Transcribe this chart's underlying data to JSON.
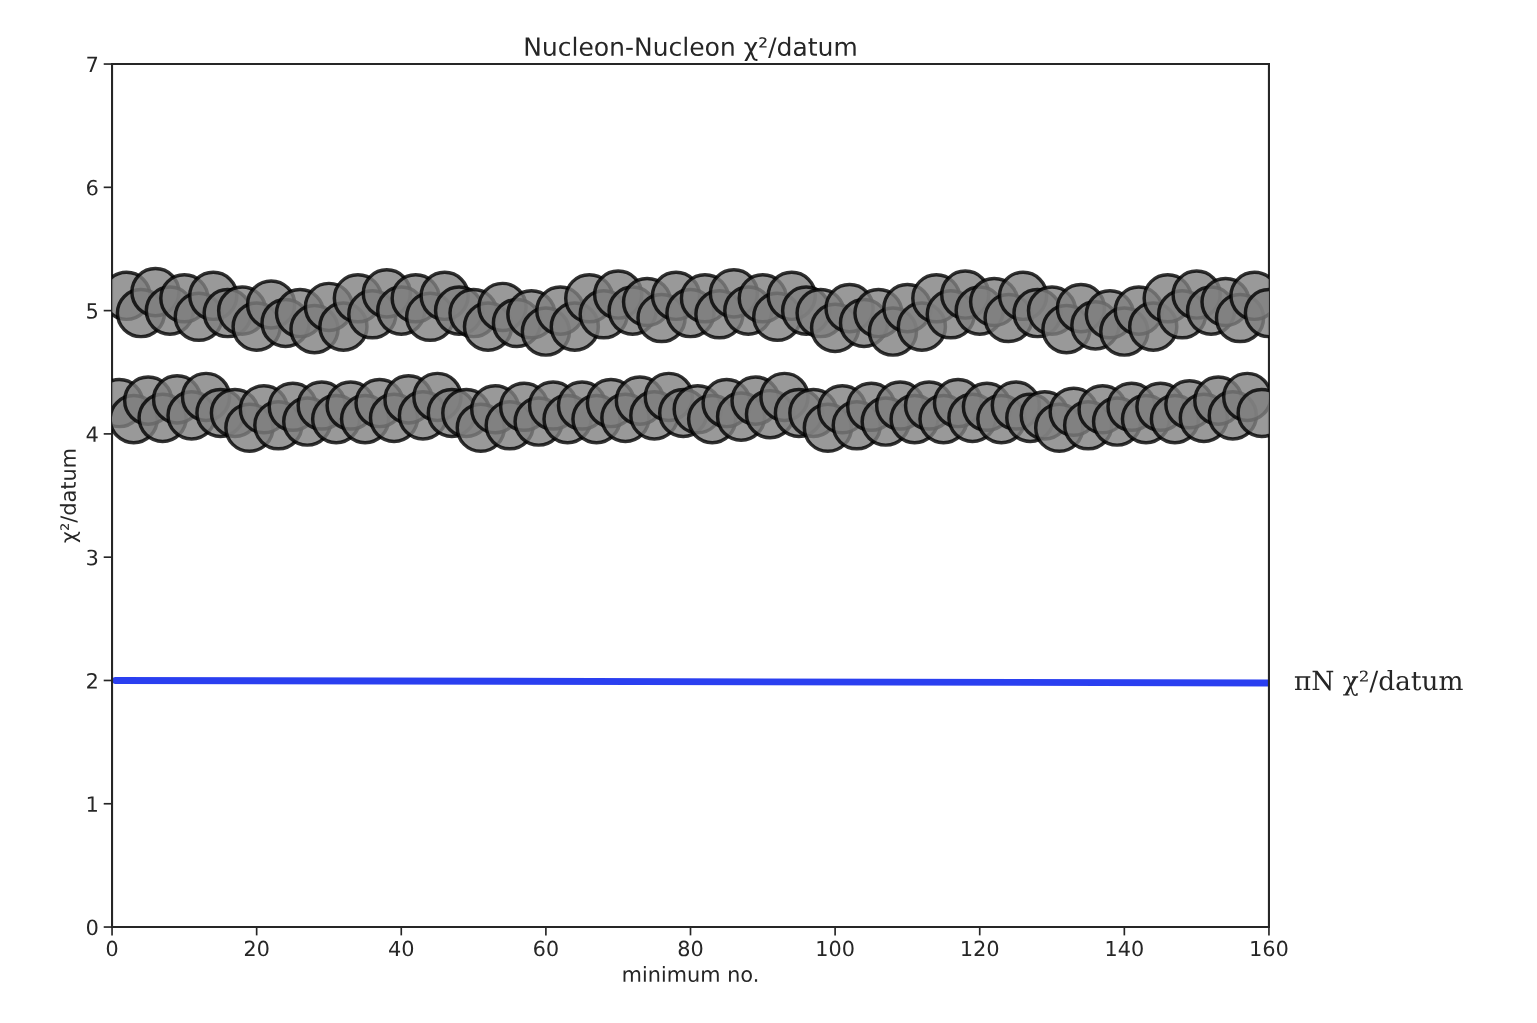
{
  "chart_data": {
    "type": "scatter",
    "title": "Nucleon-Nucleon χ²/datum",
    "xlabel": "minimum no.",
    "ylabel": "χ²/datum",
    "xlim": [
      0,
      160
    ],
    "xticks": [
      0,
      20,
      40,
      60,
      80,
      100,
      120,
      140,
      160
    ],
    "ylim": [
      0,
      7
    ],
    "yticks": [
      0,
      1,
      2,
      3,
      4,
      5,
      6,
      7
    ],
    "grid": false,
    "legend": false,
    "series": [
      {
        "marker": "circle",
        "color": "#808080",
        "x": [
          2,
          4,
          6,
          8,
          10,
          12,
          14,
          16,
          18,
          20,
          22,
          24,
          26,
          28,
          30,
          32,
          34,
          36,
          38,
          40,
          42,
          44,
          46,
          48,
          50,
          52,
          54,
          56,
          58,
          60,
          62,
          64,
          66,
          68,
          70,
          72,
          74,
          76,
          78,
          80,
          82,
          84,
          86,
          88,
          90,
          92,
          94,
          96,
          98,
          100,
          102,
          104,
          106,
          108,
          110,
          112,
          114,
          116,
          118,
          120,
          122,
          124,
          126,
          128,
          130,
          132,
          134,
          136,
          138,
          140,
          142,
          144,
          146,
          148,
          150,
          152,
          154,
          156,
          158,
          160
        ],
        "values": [
          5.12,
          4.98,
          5.15,
          5.0,
          5.1,
          4.95,
          5.12,
          4.98,
          5.0,
          4.87,
          5.05,
          4.9,
          4.98,
          4.85,
          5.03,
          4.87,
          5.1,
          4.97,
          5.14,
          5.0,
          5.1,
          4.95,
          5.12,
          5.0,
          4.98,
          4.87,
          5.03,
          4.9,
          4.97,
          4.83,
          5.0,
          4.87,
          5.1,
          4.97,
          5.13,
          5.0,
          5.07,
          4.94,
          5.12,
          4.98,
          5.1,
          4.97,
          5.14,
          5.0,
          5.1,
          4.95,
          5.12,
          5.0,
          4.98,
          4.86,
          5.02,
          4.9,
          4.98,
          4.83,
          5.02,
          4.87,
          5.1,
          4.97,
          5.13,
          5.0,
          5.07,
          4.94,
          5.12,
          4.98,
          5.0,
          4.85,
          5.02,
          4.88,
          4.97,
          4.83,
          5.0,
          4.87,
          5.1,
          4.97,
          5.13,
          5.0,
          5.07,
          4.94,
          5.12,
          4.98
        ]
      },
      {
        "marker": "circle",
        "color": "#808080",
        "x": [
          1,
          3,
          5,
          7,
          9,
          11,
          13,
          15,
          17,
          19,
          21,
          23,
          25,
          27,
          29,
          31,
          33,
          35,
          37,
          39,
          41,
          43,
          45,
          47,
          49,
          51,
          53,
          55,
          57,
          59,
          61,
          63,
          65,
          67,
          69,
          71,
          73,
          75,
          77,
          79,
          81,
          83,
          85,
          87,
          89,
          91,
          93,
          95,
          97,
          99,
          101,
          103,
          105,
          107,
          109,
          111,
          113,
          115,
          117,
          119,
          121,
          123,
          125,
          127,
          129,
          131,
          133,
          135,
          137,
          139,
          141,
          143,
          145,
          147,
          149,
          151,
          153,
          155,
          157,
          159
        ],
        "values": [
          4.25,
          4.12,
          4.27,
          4.13,
          4.28,
          4.15,
          4.3,
          4.17,
          4.17,
          4.05,
          4.2,
          4.07,
          4.22,
          4.1,
          4.23,
          4.12,
          4.23,
          4.12,
          4.25,
          4.13,
          4.28,
          4.15,
          4.3,
          4.17,
          4.17,
          4.05,
          4.2,
          4.07,
          4.22,
          4.1,
          4.23,
          4.12,
          4.23,
          4.12,
          4.25,
          4.13,
          4.27,
          4.15,
          4.3,
          4.17,
          4.2,
          4.12,
          4.25,
          4.14,
          4.27,
          4.16,
          4.3,
          4.17,
          4.17,
          4.05,
          4.2,
          4.07,
          4.22,
          4.1,
          4.23,
          4.12,
          4.23,
          4.12,
          4.25,
          4.13,
          4.22,
          4.12,
          4.23,
          4.13,
          4.15,
          4.05,
          4.18,
          4.07,
          4.2,
          4.1,
          4.22,
          4.12,
          4.22,
          4.12,
          4.24,
          4.13,
          4.27,
          4.15,
          4.3,
          4.17
        ]
      },
      {
        "type": "line",
        "marker": "none",
        "name": "πN χ²/datum",
        "color": "#2a3ff0",
        "x": [
          0.5,
          160
        ],
        "values": [
          2.0,
          1.98
        ]
      }
    ]
  }
}
